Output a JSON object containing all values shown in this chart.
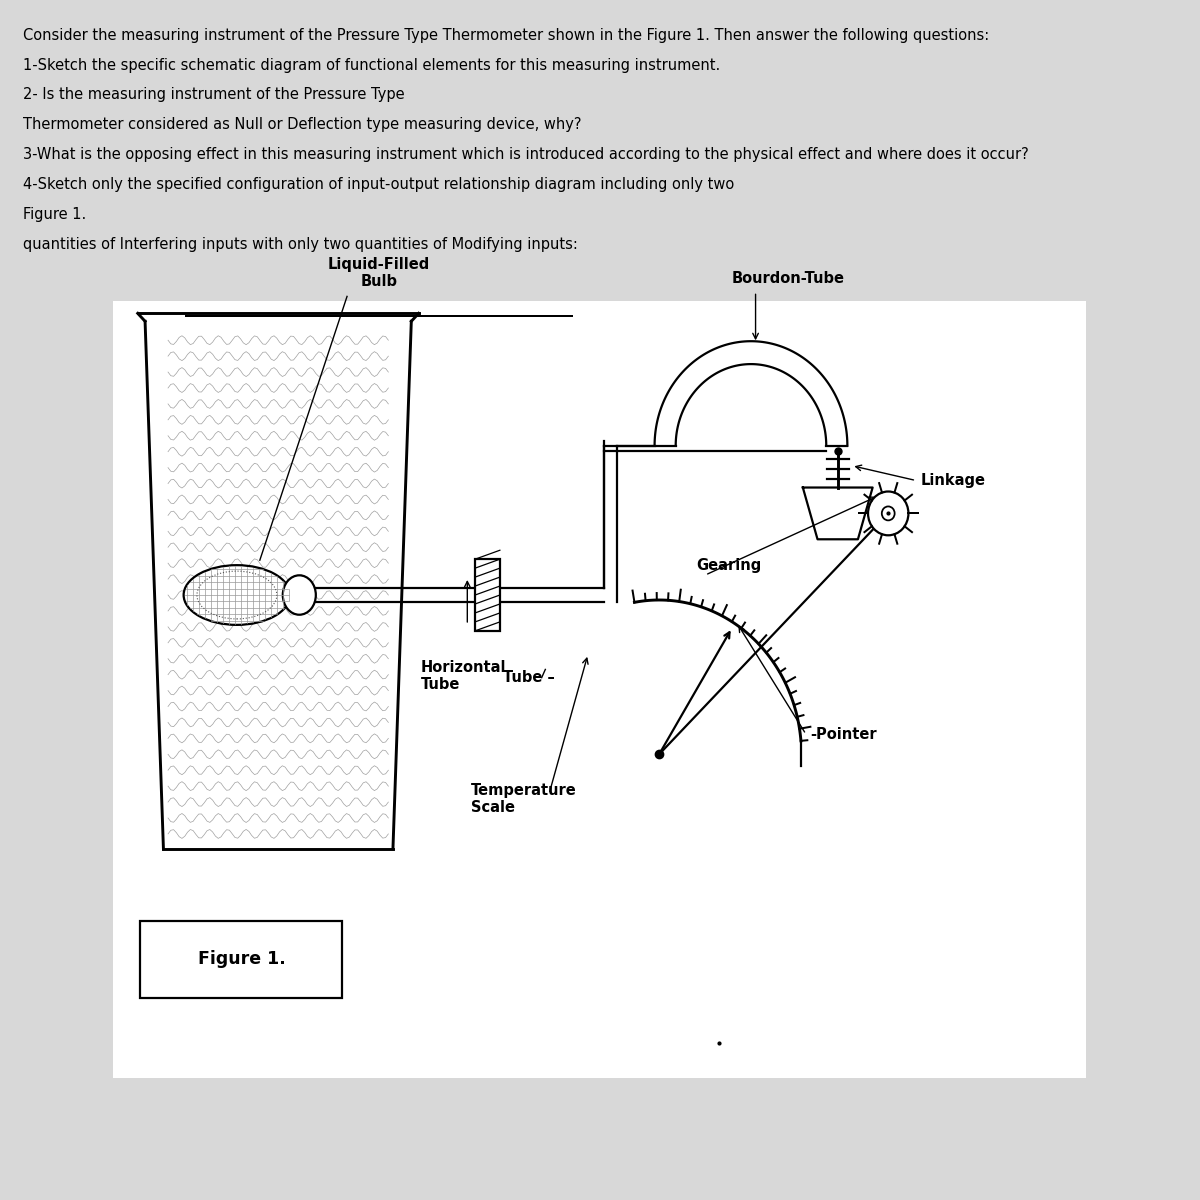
{
  "bg_color": "#d8d8d8",
  "diagram_bg": "#ffffff",
  "title_text": [
    "Consider the measuring instrument of the Pressure Type Thermometer shown in the Figure 1. Then answer the following questions:",
    "1-Sketch the specific schematic diagram of functional elements for this measuring instrument.",
    "2- Is the measuring instrument of the Pressure Type",
    "Thermometer considered as Null or Deflection type measuring device, why?",
    "3-What is the opposing effect in this measuring instrument which is introduced according to the physical effect and where does it occur?",
    "4-Sketch only the specified configuration of input-output relationship diagram including only two",
    "Figure 1.",
    "quantities of Interfering inputs with only two quantities of Modifying inputs:"
  ],
  "labels": {
    "liquid_filled_bulb": "Liquid-Filled\nBulb",
    "bourdon_tube": "Bourdon-Tube",
    "horizontal_tube": "Horizontal\nTube",
    "linkage": "Linkage",
    "gearing": "Gearing",
    "temperature_scale": "Temperature\nScale",
    "pointer": "Pointer",
    "figure": "Figure 1."
  },
  "font_size_text": 10.5,
  "font_size_labels": 10.5
}
